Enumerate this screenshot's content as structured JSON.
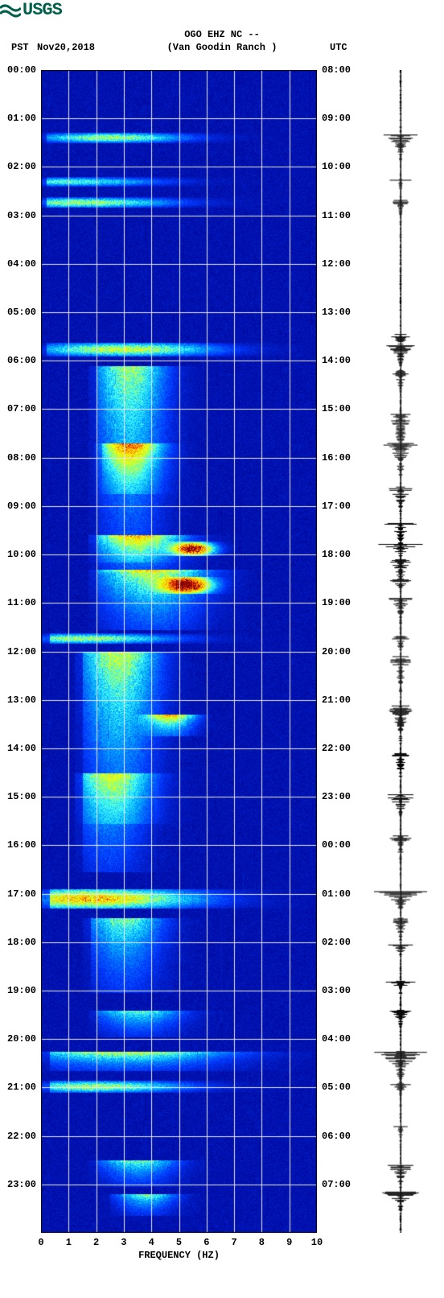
{
  "logo_text": "USGS",
  "header": {
    "pst": "PST",
    "date": "Nov20,2018",
    "utc": "UTC",
    "station": "OGO EHZ NC --",
    "location": "(Van Goodin Ranch )"
  },
  "axes": {
    "xlabel": "FREQUENCY (HZ)",
    "xmin": 0,
    "xmax": 10,
    "xticks": [
      0,
      1,
      2,
      3,
      4,
      5,
      6,
      7,
      8,
      9,
      10
    ],
    "pst_hours": [
      "00:00",
      "01:00",
      "02:00",
      "03:00",
      "04:00",
      "05:00",
      "06:00",
      "07:00",
      "08:00",
      "09:00",
      "10:00",
      "11:00",
      "12:00",
      "13:00",
      "14:00",
      "15:00",
      "16:00",
      "17:00",
      "18:00",
      "19:00",
      "20:00",
      "21:00",
      "22:00",
      "23:00"
    ],
    "utc_hours": [
      "08:00",
      "09:00",
      "10:00",
      "11:00",
      "12:00",
      "13:00",
      "14:00",
      "15:00",
      "16:00",
      "17:00",
      "18:00",
      "19:00",
      "20:00",
      "21:00",
      "22:00",
      "23:00",
      "00:00",
      "01:00",
      "02:00",
      "03:00",
      "04:00",
      "05:00",
      "06:00",
      "07:00"
    ],
    "total_hours": 24
  },
  "style": {
    "bg_deep": "#00008a",
    "bg_mid": "#0000c5",
    "grid": "#e8e8e8",
    "grid_width": 1,
    "text_color": "#000000",
    "font_family": "Courier New",
    "font_size_labels": 12,
    "logo_color": "#00604b",
    "heat_palette": [
      "#00008a",
      "#0038ff",
      "#00a5ff",
      "#3fffff",
      "#b7ff3f",
      "#ffff00",
      "#ffa000",
      "#ff3000",
      "#800000"
    ]
  },
  "spectro_bands": [
    {
      "t": 1.33,
      "dur": 0.12,
      "f0": 0.2,
      "f1": 9.8,
      "peak": 2.5,
      "intensity": 0.45,
      "spread": 2.5
    },
    {
      "t": 2.25,
      "dur": 0.1,
      "f0": 0.2,
      "f1": 9.8,
      "peak": 1.0,
      "intensity": 0.35,
      "spread": 3.0
    },
    {
      "t": 2.67,
      "dur": 0.12,
      "f0": 0.2,
      "f1": 9.8,
      "peak": 1.5,
      "intensity": 0.45,
      "spread": 3.0
    },
    {
      "t": 5.67,
      "dur": 0.18,
      "f0": 0.2,
      "f1": 9.8,
      "peak": 3.0,
      "intensity": 0.5,
      "spread": 3.0
    },
    {
      "t": 6.1,
      "dur": 4.0,
      "f0": 2.0,
      "f1": 6.5,
      "peak": 3.2,
      "intensity": 0.45,
      "spread": 1.2
    },
    {
      "t": 7.7,
      "dur": 1.0,
      "f0": 2.2,
      "f1": 5.5,
      "peak": 3.2,
      "intensity": 0.6,
      "spread": 1.0
    },
    {
      "t": 9.78,
      "dur": 0.2,
      "f0": 3.5,
      "f1": 7.2,
      "peak": 5.5,
      "intensity": 0.95,
      "spread": 0.7
    },
    {
      "t": 9.6,
      "dur": 0.7,
      "f0": 2.0,
      "f1": 7.0,
      "peak": 3.5,
      "intensity": 0.6,
      "spread": 1.5
    },
    {
      "t": 10.5,
      "dur": 0.25,
      "f0": 3.5,
      "f1": 7.0,
      "peak": 5.3,
      "intensity": 0.9,
      "spread": 0.8
    },
    {
      "t": 10.3,
      "dur": 1.2,
      "f0": 2.0,
      "f1": 7.5,
      "peak": 4.0,
      "intensity": 0.55,
      "spread": 1.8
    },
    {
      "t": 11.67,
      "dur": 0.12,
      "f0": 0.3,
      "f1": 9.5,
      "peak": 1.5,
      "intensity": 0.45,
      "spread": 3.0
    },
    {
      "t": 12.0,
      "dur": 3.5,
      "f0": 1.5,
      "f1": 6.0,
      "peak": 2.8,
      "intensity": 0.5,
      "spread": 1.3
    },
    {
      "t": 13.3,
      "dur": 0.4,
      "f0": 3.5,
      "f1": 6.0,
      "peak": 4.7,
      "intensity": 0.7,
      "spread": 0.8
    },
    {
      "t": 14.5,
      "dur": 2.0,
      "f0": 1.5,
      "f1": 5.5,
      "peak": 2.5,
      "intensity": 0.4,
      "spread": 1.3
    },
    {
      "t": 16.95,
      "dur": 0.3,
      "f0": 0.3,
      "f1": 9.8,
      "peak": 1.8,
      "intensity": 0.65,
      "spread": 3.5
    },
    {
      "t": 17.5,
      "dur": 1.5,
      "f0": 1.8,
      "f1": 6.0,
      "peak": 3.0,
      "intensity": 0.4,
      "spread": 1.3
    },
    {
      "t": 19.4,
      "dur": 0.5,
      "f0": 2.0,
      "f1": 7.0,
      "peak": 3.5,
      "intensity": 0.4,
      "spread": 1.5
    },
    {
      "t": 20.25,
      "dur": 0.35,
      "f0": 0.3,
      "f1": 9.8,
      "peak": 3.0,
      "intensity": 0.55,
      "spread": 3.5
    },
    {
      "t": 20.9,
      "dur": 0.15,
      "f0": 0.3,
      "f1": 9.5,
      "peak": 2.0,
      "intensity": 0.45,
      "spread": 3.0
    },
    {
      "t": 22.5,
      "dur": 0.5,
      "f0": 2.0,
      "f1": 6.0,
      "peak": 3.5,
      "intensity": 0.4,
      "spread": 1.3
    },
    {
      "t": 23.2,
      "dur": 0.4,
      "f0": 2.5,
      "f1": 6.0,
      "peak": 3.8,
      "intensity": 0.4,
      "spread": 1.0
    }
  ],
  "waveform": {
    "num_points": 1440,
    "base_noise": 0.03,
    "events": [
      {
        "t": 1.33,
        "dur": 0.55,
        "amp": 0.55
      },
      {
        "t": 2.25,
        "dur": 0.25,
        "amp": 0.35
      },
      {
        "t": 2.67,
        "dur": 0.3,
        "amp": 0.4
      },
      {
        "t": 5.45,
        "dur": 0.35,
        "amp": 0.35
      },
      {
        "t": 5.67,
        "dur": 0.5,
        "amp": 0.5
      },
      {
        "t": 6.2,
        "dur": 0.45,
        "amp": 0.35
      },
      {
        "t": 7.1,
        "dur": 1.4,
        "amp": 0.35
      },
      {
        "t": 7.7,
        "dur": 0.6,
        "amp": 0.45
      },
      {
        "t": 8.6,
        "dur": 0.6,
        "amp": 0.4
      },
      {
        "t": 9.35,
        "dur": 0.6,
        "amp": 0.45
      },
      {
        "t": 9.78,
        "dur": 0.25,
        "amp": 0.75
      },
      {
        "t": 10.1,
        "dur": 0.6,
        "amp": 0.4
      },
      {
        "t": 10.5,
        "dur": 0.25,
        "amp": 0.5
      },
      {
        "t": 10.9,
        "dur": 0.6,
        "amp": 0.35
      },
      {
        "t": 11.67,
        "dur": 0.3,
        "amp": 0.45
      },
      {
        "t": 12.1,
        "dur": 0.9,
        "amp": 0.4
      },
      {
        "t": 13.1,
        "dur": 0.8,
        "amp": 0.45
      },
      {
        "t": 14.1,
        "dur": 0.6,
        "amp": 0.35
      },
      {
        "t": 14.95,
        "dur": 0.45,
        "amp": 0.55
      },
      {
        "t": 15.8,
        "dur": 0.6,
        "amp": 0.35
      },
      {
        "t": 16.95,
        "dur": 0.35,
        "amp": 1.0
      },
      {
        "t": 17.5,
        "dur": 0.5,
        "amp": 0.35
      },
      {
        "t": 18.05,
        "dur": 0.25,
        "amp": 0.35
      },
      {
        "t": 18.8,
        "dur": 0.3,
        "amp": 0.45
      },
      {
        "t": 19.4,
        "dur": 0.35,
        "amp": 0.4
      },
      {
        "t": 20.25,
        "dur": 0.7,
        "amp": 0.75
      },
      {
        "t": 20.9,
        "dur": 0.25,
        "amp": 0.4
      },
      {
        "t": 21.8,
        "dur": 0.25,
        "amp": 0.25
      },
      {
        "t": 22.6,
        "dur": 0.45,
        "amp": 0.45
      },
      {
        "t": 23.15,
        "dur": 0.5,
        "amp": 0.55
      }
    ]
  }
}
